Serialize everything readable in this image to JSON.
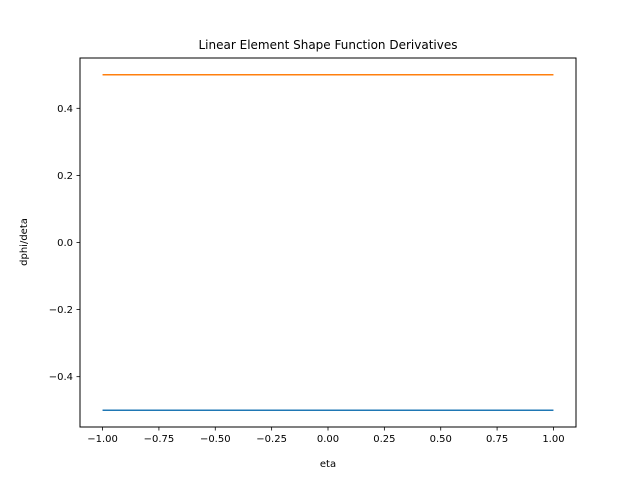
{
  "chart_data": {
    "type": "line",
    "title": "Linear Element Shape Function Derivatives",
    "xlabel": "eta",
    "ylabel": "dphi/deta",
    "xlim": [
      -1.1,
      1.1
    ],
    "ylim": [
      -0.55,
      0.55
    ],
    "xticks": [
      -1.0,
      -0.75,
      -0.5,
      -0.25,
      0.0,
      0.25,
      0.5,
      0.75,
      1.0
    ],
    "xtick_labels": [
      "−1.00",
      "−0.75",
      "−0.50",
      "−0.25",
      "0.00",
      "0.25",
      "0.50",
      "0.75",
      "1.00"
    ],
    "yticks": [
      -0.4,
      -0.2,
      0.0,
      0.2,
      0.4
    ],
    "ytick_labels": [
      "−0.4",
      "−0.2",
      "0.0",
      "0.2",
      "0.4"
    ],
    "grid": false,
    "legend": false,
    "series": [
      {
        "color": "#1f77b4",
        "x": [
          -1.0,
          1.0
        ],
        "y": [
          -0.5,
          -0.5
        ]
      },
      {
        "color": "#ff7f0e",
        "x": [
          -1.0,
          1.0
        ],
        "y": [
          0.5,
          0.5
        ]
      }
    ]
  }
}
